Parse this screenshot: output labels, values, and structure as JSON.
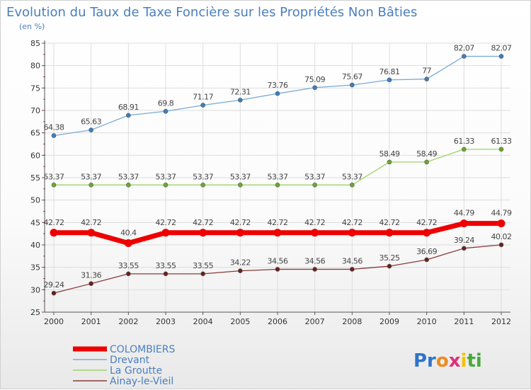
{
  "chart_data": {
    "type": "line",
    "title": "Evolution du Taux de Taxe Foncière sur les Propriétés Non Bâties",
    "subtitle": "(en %)",
    "x": [
      "2000",
      "2001",
      "2002",
      "2003",
      "2004",
      "2005",
      "2006",
      "2007",
      "2008",
      "2009",
      "2010",
      "2011",
      "2012"
    ],
    "ylim": [
      25,
      85
    ],
    "yticks": [
      "25",
      "30",
      "35",
      "40",
      "45",
      "50",
      "55",
      "60",
      "65",
      "70",
      "75",
      "80",
      "85"
    ],
    "grid": true,
    "legend_position": "bottom-left",
    "series": [
      {
        "name": "Drevant",
        "color": "#7aaad6",
        "marker": "#3b7fc0",
        "width": 1.3,
        "values": [
          64.38,
          65.63,
          68.91,
          69.8,
          71.17,
          72.31,
          73.76,
          75.09,
          75.67,
          76.81,
          77,
          82.07,
          82.07
        ],
        "labels": [
          "64.38",
          "65.63",
          "68.91",
          "69.8",
          "71.17",
          "72.31",
          "73.76",
          "75.09",
          "75.67",
          "76.81",
          "77",
          "82.07",
          "82.07"
        ]
      },
      {
        "name": "La Groutte",
        "color": "#9ed36a",
        "marker": "#6aaa2a",
        "width": 1.3,
        "values": [
          53.37,
          53.37,
          53.37,
          53.37,
          53.37,
          53.37,
          53.37,
          53.37,
          53.37,
          58.49,
          58.49,
          61.33,
          61.33
        ],
        "labels": [
          "53.37",
          "53.37",
          "53.37",
          "53.37",
          "53.37",
          "53.37",
          "53.37",
          "53.37",
          "53.37",
          "58.49",
          "58.49",
          "61.33",
          "61.33"
        ]
      },
      {
        "name": "COLOMBIERS",
        "color": "#ee0000",
        "marker": "#ee0000",
        "width": 7,
        "values": [
          42.72,
          42.72,
          40.4,
          42.72,
          42.72,
          42.72,
          42.72,
          42.72,
          42.72,
          42.72,
          42.72,
          44.79,
          44.79
        ],
        "labels": [
          "42.72",
          "42.72",
          "40.4",
          "42.72",
          "42.72",
          "42.72",
          "42.72",
          "42.72",
          "42.72",
          "42.72",
          "42.72",
          "44.79",
          "44.79"
        ]
      },
      {
        "name": "Ainay-le-Vieil",
        "color": "#8a3a3a",
        "marker": "#6a1f1f",
        "width": 1.3,
        "values": [
          29.24,
          31.36,
          33.55,
          33.55,
          33.55,
          34.22,
          34.56,
          34.56,
          34.56,
          35.25,
          36.69,
          39.24,
          40.02
        ],
        "labels": [
          "29.24",
          "31.36",
          "33.55",
          "33.55",
          "33.55",
          "34.22",
          "34.56",
          "34.56",
          "34.56",
          "35.25",
          "36.69",
          "39.24",
          "40.02"
        ]
      }
    ],
    "legend": [
      {
        "name": "COLOMBIERS",
        "color": "#ee0000"
      },
      {
        "name": "Drevant",
        "color": "#7aaad6"
      },
      {
        "name": "La Groutte",
        "color": "#9ed36a"
      },
      {
        "name": "Ainay-le-Vieil",
        "color": "#8a3a3a"
      }
    ]
  },
  "logo": {
    "parts": [
      "Pr",
      "o",
      "x",
      "i",
      "ti"
    ]
  }
}
